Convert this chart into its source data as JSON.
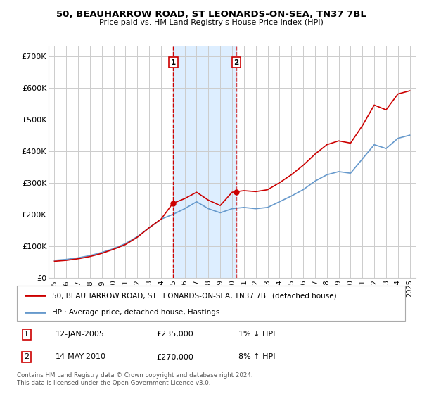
{
  "title": "50, BEAUHARROW ROAD, ST LEONARDS-ON-SEA, TN37 7BL",
  "subtitle": "Price paid vs. HM Land Registry's House Price Index (HPI)",
  "ylabel_ticks": [
    "£0",
    "£100K",
    "£200K",
    "£300K",
    "£400K",
    "£500K",
    "£600K",
    "£700K"
  ],
  "ytick_vals": [
    0,
    100000,
    200000,
    300000,
    400000,
    500000,
    600000,
    700000
  ],
  "ylim": [
    0,
    730000
  ],
  "xlim_start": 1994.5,
  "xlim_end": 2025.5,
  "sale1": {
    "year": 2005.03,
    "price": 235000,
    "label": "1",
    "date": "12-JAN-2005",
    "amount": "£235,000",
    "pct": "1% ↓ HPI"
  },
  "sale2": {
    "year": 2010.37,
    "price": 270000,
    "label": "2",
    "date": "14-MAY-2010",
    "amount": "£270,000",
    "pct": "8% ↑ HPI"
  },
  "legend_line1": "50, BEAUHARROW ROAD, ST LEONARDS-ON-SEA, TN37 7BL (detached house)",
  "legend_line2": "HPI: Average price, detached house, Hastings",
  "footer": "Contains HM Land Registry data © Crown copyright and database right 2024.\nThis data is licensed under the Open Government Licence v3.0.",
  "red_color": "#cc0000",
  "blue_color": "#6699cc",
  "shaded_color": "#ddeeff",
  "grid_color": "#cccccc",
  "xticks": [
    1995,
    1996,
    1997,
    1998,
    1999,
    2000,
    2001,
    2002,
    2003,
    2004,
    2005,
    2006,
    2007,
    2008,
    2009,
    2010,
    2011,
    2012,
    2013,
    2014,
    2015,
    2016,
    2017,
    2018,
    2019,
    2020,
    2021,
    2022,
    2023,
    2024,
    2025
  ],
  "hpi_years": [
    1995,
    1996,
    1997,
    1998,
    1999,
    2000,
    2001,
    2002,
    2003,
    2004,
    2005,
    2006,
    2007,
    2008,
    2009,
    2010,
    2011,
    2012,
    2013,
    2014,
    2015,
    2016,
    2017,
    2018,
    2019,
    2020,
    2021,
    2022,
    2023,
    2024,
    2025
  ],
  "hpi_values": [
    55000,
    58000,
    63000,
    70000,
    80000,
    92000,
    108000,
    130000,
    158000,
    185000,
    200000,
    218000,
    240000,
    218000,
    205000,
    218000,
    222000,
    218000,
    222000,
    240000,
    258000,
    278000,
    305000,
    325000,
    335000,
    330000,
    375000,
    420000,
    408000,
    440000,
    450000
  ],
  "red_years": [
    1995,
    1996,
    1997,
    1998,
    1999,
    2000,
    2001,
    2002,
    2003,
    2004,
    2005,
    2006,
    2007,
    2008,
    2009,
    2010,
    2011,
    2012,
    2013,
    2014,
    2015,
    2016,
    2017,
    2018,
    2019,
    2020,
    2021,
    2022,
    2023,
    2024,
    2025
  ],
  "red_values": [
    52000,
    55000,
    60000,
    67000,
    77000,
    90000,
    105000,
    128000,
    158000,
    185000,
    235000,
    250000,
    270000,
    245000,
    228000,
    270000,
    275000,
    272000,
    278000,
    300000,
    325000,
    355000,
    390000,
    420000,
    432000,
    425000,
    480000,
    545000,
    530000,
    580000,
    590000
  ]
}
